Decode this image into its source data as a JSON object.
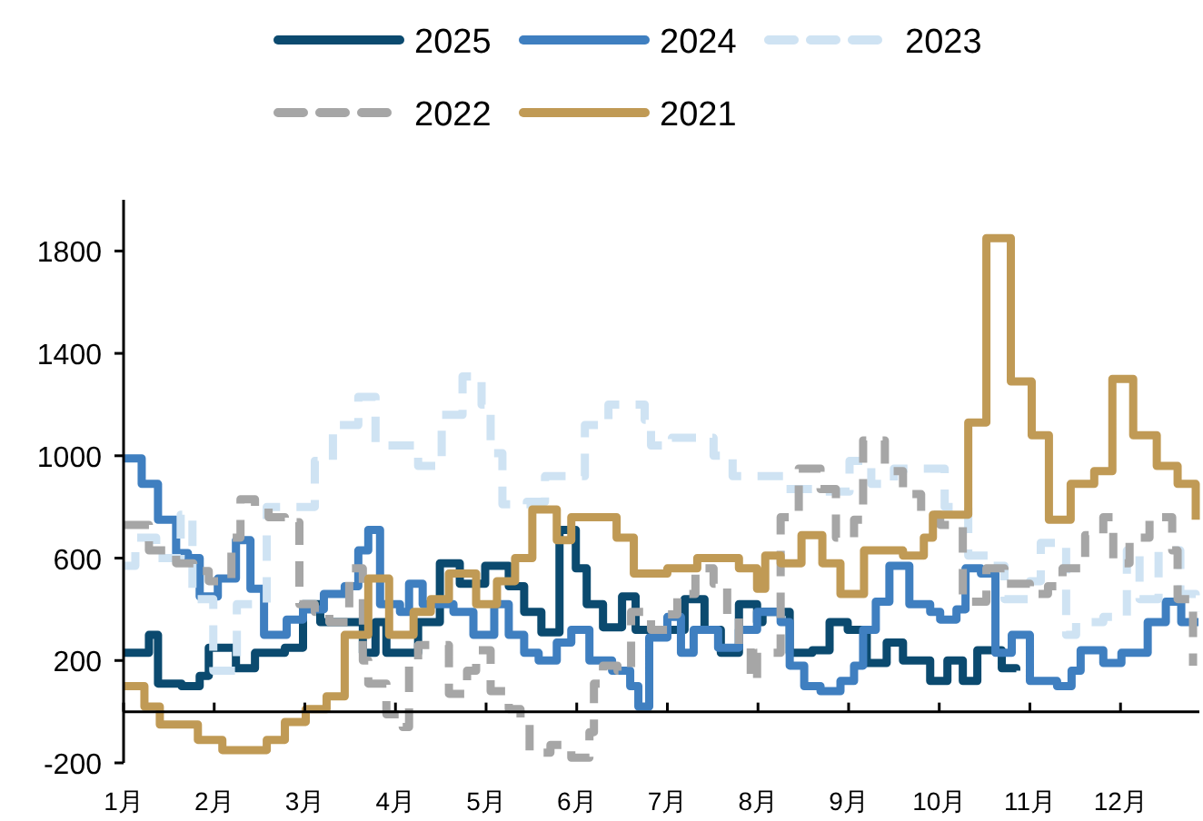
{
  "chart_data": {
    "type": "step",
    "legend": "top",
    "line_style": "solid",
    "grid": false,
    "xlim": [
      1,
      12.87
    ],
    "xticks": [
      {
        "value": 1,
        "label": "1月"
      },
      {
        "value": 2,
        "label": "2月"
      },
      {
        "value": 3,
        "label": "3月"
      },
      {
        "value": 4,
        "label": "4月"
      },
      {
        "value": 5,
        "label": "5月"
      },
      {
        "value": 6,
        "label": "6月"
      },
      {
        "value": 7,
        "label": "7月"
      },
      {
        "value": 8,
        "label": "8月"
      },
      {
        "value": 9,
        "label": "9月"
      },
      {
        "value": 10,
        "label": "10月"
      },
      {
        "value": 11,
        "label": "11月"
      },
      {
        "value": 12,
        "label": "12月"
      }
    ],
    "ylim": [
      -200,
      2000
    ],
    "yticks": [
      -200,
      200,
      600,
      1000,
      1400,
      1800
    ],
    "series": [
      {
        "name": "2025",
        "color": "#0b4a6f",
        "x": [
          1.0,
          1.28,
          1.38,
          1.64,
          1.84,
          1.94,
          2.24,
          2.45,
          2.78,
          2.98,
          3.17,
          3.64,
          3.78,
          3.9,
          4.25,
          4.49,
          4.71,
          4.99,
          5.25,
          5.42,
          5.61,
          5.81,
          5.99,
          6.11,
          6.29,
          6.5,
          6.65,
          7.19,
          7.41,
          7.59,
          7.79,
          7.99,
          8.05,
          8.35,
          8.6,
          8.79,
          8.99,
          9.2,
          9.42,
          9.6,
          9.9,
          10.09,
          10.26,
          10.42,
          10.69,
          10.85
        ],
        "values": [
          230,
          300,
          110,
          100,
          140,
          250,
          170,
          230,
          250,
          420,
          350,
          230,
          350,
          230,
          350,
          580,
          500,
          570,
          490,
          390,
          310,
          710,
          560,
          420,
          330,
          450,
          320,
          440,
          320,
          230,
          420,
          350,
          390,
          230,
          240,
          350,
          320,
          190,
          270,
          200,
          120,
          200,
          120,
          240,
          170,
          160
        ]
      },
      {
        "name": "2024",
        "color": "#3f7fc0",
        "x": [
          1.0,
          1.2,
          1.38,
          1.58,
          1.71,
          1.84,
          2.04,
          2.24,
          2.4,
          2.55,
          2.8,
          2.98,
          3.21,
          3.44,
          3.59,
          3.7,
          3.83,
          4.05,
          4.15,
          4.3,
          4.64,
          4.86,
          5.09,
          5.25,
          5.42,
          5.58,
          5.78,
          5.94,
          6.14,
          6.39,
          6.59,
          6.68,
          6.8,
          7.0,
          7.15,
          7.29,
          7.56,
          7.79,
          7.99,
          8.05,
          8.25,
          8.35,
          8.51,
          8.69,
          8.91,
          9.06,
          9.16,
          9.3,
          9.45,
          9.67,
          9.9,
          10.01,
          10.19,
          10.29,
          10.46,
          10.62,
          10.8,
          11.0,
          11.3,
          11.46,
          11.56,
          11.81,
          12.01,
          12.3,
          12.5,
          12.67,
          12.86
        ],
        "values": [
          990,
          890,
          750,
          620,
          600,
          450,
          520,
          670,
          480,
          300,
          360,
          400,
          460,
          490,
          630,
          710,
          420,
          390,
          500,
          420,
          390,
          300,
          420,
          300,
          230,
          200,
          270,
          320,
          200,
          160,
          100,
          20,
          290,
          370,
          230,
          320,
          250,
          320,
          390,
          390,
          350,
          180,
          100,
          80,
          120,
          180,
          320,
          430,
          570,
          420,
          390,
          360,
          400,
          560,
          540,
          230,
          300,
          120,
          100,
          160,
          240,
          190,
          230,
          350,
          430,
          350,
          350
        ]
      },
      {
        "name": "2023",
        "color": "#cfe3f3",
        "line_style": "dashed",
        "x": [
          1.0,
          1.13,
          1.36,
          1.63,
          1.76,
          1.99,
          2.25,
          2.58,
          3.11,
          3.31,
          3.59,
          3.78,
          4.25,
          4.51,
          4.74,
          4.95,
          5.05,
          5.18,
          5.45,
          5.65,
          6.09,
          6.35,
          6.75,
          6.82,
          7.05,
          7.51,
          7.72,
          8.31,
          8.71,
          9.01,
          9.25,
          9.5,
          9.96,
          10.06,
          10.32,
          10.59,
          10.72,
          11.0,
          11.12,
          11.4,
          11.51,
          11.81,
          12.07,
          12.21,
          12.42,
          12.66,
          12.83
        ],
        "values": [
          570,
          680,
          600,
          770,
          440,
          160,
          420,
          800,
          980,
          1120,
          1230,
          1040,
          960,
          1160,
          1310,
          1200,
          1010,
          810,
          820,
          920,
          1120,
          1200,
          1140,
          1040,
          1070,
          1000,
          920,
          870,
          860,
          980,
          890,
          950,
          950,
          800,
          610,
          570,
          440,
          510,
          660,
          300,
          350,
          370,
          630,
          440,
          630,
          460,
          390
        ]
      },
      {
        "name": "2022",
        "color": "#a6a6a6",
        "line_style": "dashed",
        "x": [
          1.0,
          1.28,
          1.58,
          1.77,
          1.94,
          2.19,
          2.29,
          2.45,
          2.6,
          2.78,
          2.94,
          3.11,
          3.27,
          3.49,
          3.64,
          3.7,
          3.9,
          4.08,
          4.15,
          4.25,
          4.59,
          4.79,
          4.89,
          5.05,
          5.25,
          5.38,
          5.48,
          5.71,
          5.94,
          6.14,
          6.19,
          6.29,
          6.45,
          6.6,
          6.82,
          7.0,
          7.11,
          7.31,
          7.51,
          7.66,
          7.79,
          7.92,
          7.99,
          8.25,
          8.45,
          8.69,
          8.86,
          9.06,
          9.16,
          9.4,
          9.6,
          9.8,
          10.01,
          10.26,
          10.52,
          10.72,
          11.0,
          11.2,
          11.36,
          11.61,
          11.81,
          11.92,
          12.1,
          12.32,
          12.57,
          12.63,
          12.8
        ],
        "values": [
          730,
          630,
          580,
          550,
          510,
          680,
          830,
          800,
          760,
          740,
          420,
          390,
          350,
          560,
          200,
          110,
          -10,
          -60,
          180,
          260,
          70,
          160,
          240,
          80,
          10,
          -40,
          -160,
          -130,
          -180,
          -80,
          110,
          180,
          160,
          390,
          320,
          380,
          460,
          560,
          500,
          380,
          250,
          120,
          230,
          760,
          950,
          870,
          680,
          750,
          1060,
          940,
          850,
          770,
          730,
          430,
          560,
          500,
          460,
          490,
          560,
          690,
          760,
          580,
          680,
          760,
          630,
          440,
          180
        ]
      },
      {
        "name": "2021",
        "color": "#c09a55",
        "x": [
          1.0,
          1.23,
          1.4,
          1.82,
          2.09,
          2.58,
          2.78,
          3.01,
          3.24,
          3.44,
          3.7,
          3.93,
          4.2,
          4.39,
          4.59,
          4.89,
          5.12,
          5.32,
          5.51,
          5.78,
          5.94,
          6.44,
          6.63,
          7.0,
          7.33,
          7.79,
          7.99,
          8.08,
          8.25,
          8.48,
          8.71,
          8.91,
          9.17,
          9.6,
          9.83,
          9.93,
          10.32,
          10.52,
          10.79,
          11.02,
          11.21,
          11.45,
          11.71,
          11.91,
          12.14,
          12.4,
          12.63,
          12.83
        ],
        "values": [
          100,
          20,
          -50,
          -110,
          -150,
          -110,
          -40,
          10,
          60,
          300,
          520,
          300,
          390,
          440,
          540,
          420,
          510,
          600,
          790,
          670,
          760,
          680,
          540,
          560,
          600,
          560,
          480,
          610,
          580,
          690,
          580,
          460,
          630,
          610,
          680,
          770,
          1130,
          1850,
          1290,
          1080,
          750,
          890,
          940,
          1300,
          1080,
          960,
          890,
          750
        ]
      }
    ]
  }
}
